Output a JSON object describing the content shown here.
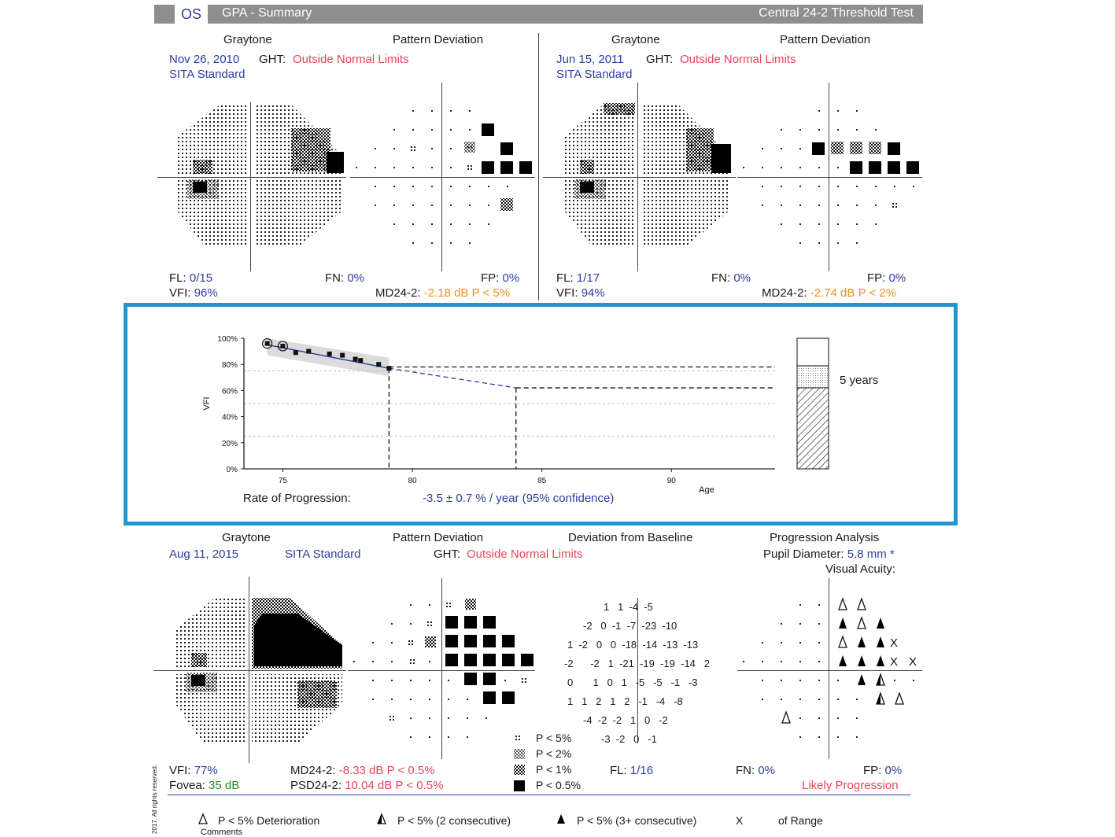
{
  "header": {
    "eye": "OS",
    "title": "GPA - Summary",
    "test": "Central 24-2 Threshold Test"
  },
  "baseline1": {
    "graytone_label": "Graytone",
    "pd_label": "Pattern Deviation",
    "date": "Nov 26, 2010",
    "ght_label": "GHT:",
    "ght_value": "Outside Normal Limits",
    "strategy": "SITA Standard",
    "fl_label": "FL:",
    "fl_value": "0/15",
    "fn_label": "FN:",
    "fn_value": "0%",
    "fp_label": "FP:",
    "fp_value": "0%",
    "vfi_label": "VFI:",
    "vfi_value": "96%",
    "md_label": "MD24-2:",
    "md_value": "-2.18 dB P < 5%"
  },
  "baseline2": {
    "graytone_label": "Graytone",
    "pd_label": "Pattern Deviation",
    "date": "Jun 15, 2011",
    "ght_label": "GHT:",
    "ght_value": "Outside Normal Limits",
    "strategy": "SITA Standard",
    "fl_label": "FL:",
    "fl_value": "1/17",
    "fn_label": "FN:",
    "fn_value": "0%",
    "fp_label": "FP:",
    "fp_value": "0%",
    "vfi_label": "VFI:",
    "vfi_value": "94%",
    "md_label": "MD24-2:",
    "md_value": "-2.74 dB P < 2%"
  },
  "progression": {
    "rate_label": "Rate of Progression:",
    "rate_value": "-3.5 ± 0.7 % / year (95% confidence)",
    "bar_label": "5 years"
  },
  "chart_data": {
    "type": "line",
    "xlabel": "Age",
    "ylabel": "VFI",
    "xlim": [
      73.5,
      94
    ],
    "ylim": [
      0,
      100
    ],
    "x_ticks": [
      "75",
      "80",
      "85",
      "90"
    ],
    "y_ticks": [
      "0%",
      "20%",
      "40%",
      "60%",
      "80%",
      "100%"
    ],
    "series": [
      {
        "values": [
          [
            74.4,
            96
          ],
          [
            75.0,
            94
          ],
          [
            75.5,
            89
          ],
          [
            76.0,
            90
          ],
          [
            76.8,
            88
          ],
          [
            77.3,
            87
          ],
          [
            77.8,
            84
          ],
          [
            78.0,
            83
          ],
          [
            78.7,
            80
          ],
          [
            79.1,
            77
          ]
        ]
      }
    ],
    "projection_end": 62,
    "baseline_level": 78,
    "reference_levels": [
      75,
      50,
      25
    ],
    "grid": false
  },
  "followup": {
    "graytone_label": "Graytone",
    "pd_label": "Pattern Deviation",
    "dfb_label": "Deviation from Baseline",
    "pa_label": "Progression Analysis",
    "date": "Aug 11, 2015",
    "strategy": "SITA Standard",
    "ght_label": "GHT:",
    "ght_value": "Outside Normal Limits",
    "pupil_label": "Pupil Diameter:",
    "pupil_value": "5.8 mm *",
    "va_label": "Visual Acuity:",
    "vfi_label": "VFI:",
    "vfi_value": "77%",
    "fovea_label": "Fovea:",
    "fovea_value": "35 dB",
    "md_label": "MD24-2:",
    "md_value": "-8.33 dB P < 0.5%",
    "psd_label": "PSD24-2:",
    "psd_value": "10.04 dB P < 0.5%",
    "fl_label": "FL:",
    "fl_value": "1/16",
    "fn_label": "FN:",
    "fn_value": "0%",
    "fp_label": "FP:",
    "fp_value": "0%",
    "result": "Likely Progression",
    "dfb_rows": [
      "1   1  -4  -5",
      "-2   0  -1  -7  -23  -10",
      "1  -2   0   0  -18  -14  -13  -13",
      "-2      -2   1  -21  -19  -19  -14   2",
      "0       1   0   1   -5   -5   -1   -3",
      "1   1   2   1   2   -1   -4   -8",
      "-4  -2  -2   1   0   -2",
      "-3  -2   0   -1"
    ]
  },
  "pd_legend": [
    "P < 5%",
    "P < 2%",
    "P < 1%",
    "P < 0.5%"
  ],
  "bottom_legend": {
    "open": "P < 5% Deterioration",
    "half": "P < 5% (2 consecutive)",
    "full": "P < 5% (3+ consecutive)",
    "x_symbol": "X",
    "x_label": "of Range",
    "comments": "Comments",
    "copyright": "2017. All rights reserved."
  }
}
